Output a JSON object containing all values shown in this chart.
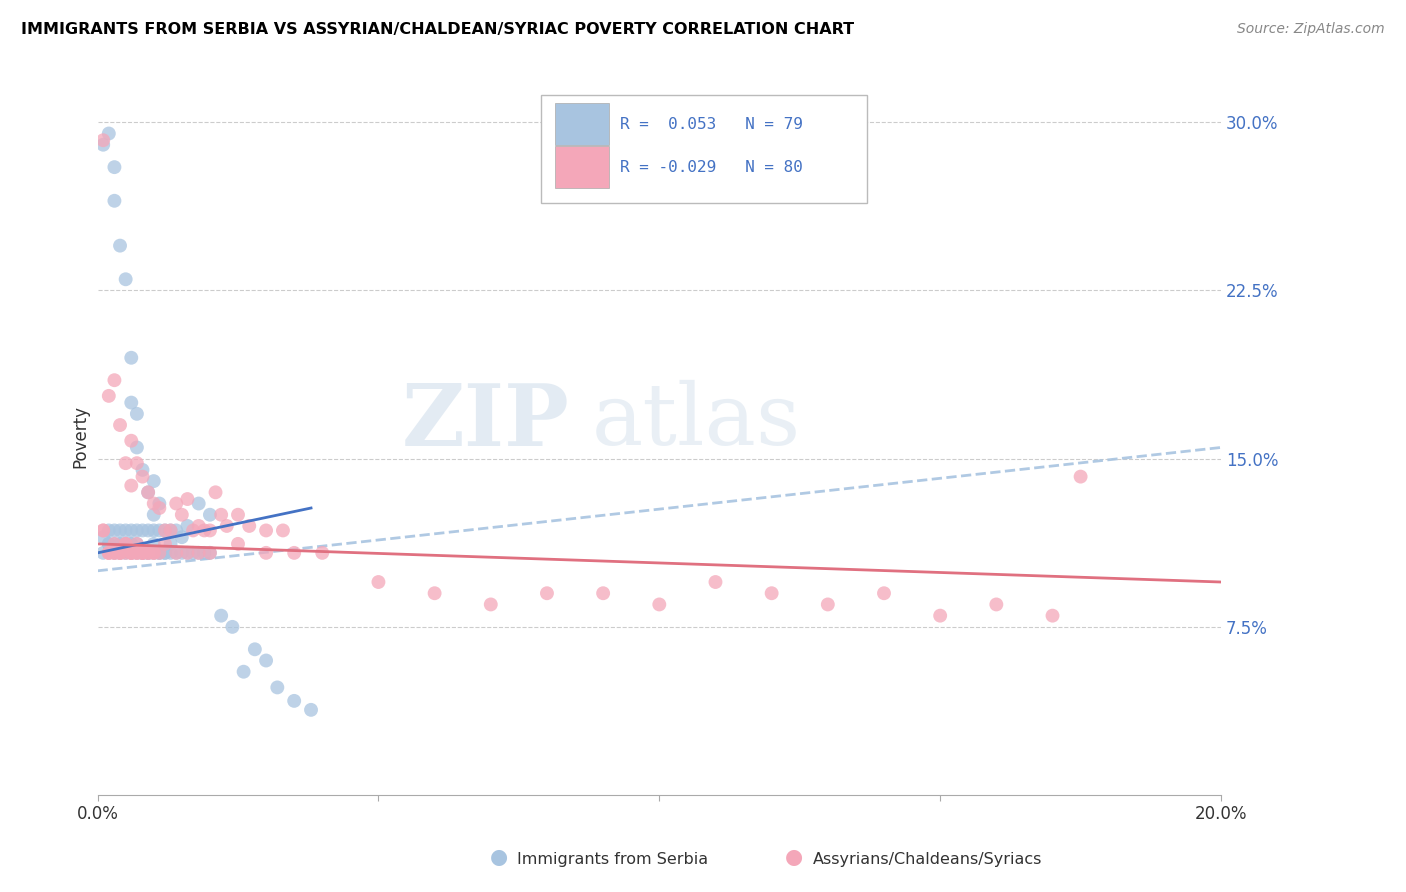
{
  "title": "IMMIGRANTS FROM SERBIA VS ASSYRIAN/CHALDEAN/SYRIAC POVERTY CORRELATION CHART",
  "source": "Source: ZipAtlas.com",
  "ylabel": "Poverty",
  "xlim": [
    0.0,
    0.2
  ],
  "ylim": [
    0.0,
    0.32
  ],
  "r_blue": 0.053,
  "n_blue": 79,
  "r_pink": -0.029,
  "n_pink": 80,
  "legend_label_blue": "Immigrants from Serbia",
  "legend_label_pink": "Assyrians/Chaldeans/Syriacs",
  "color_blue": "#a8c4e0",
  "color_pink": "#f4a7b9",
  "color_blue_line": "#4472c4",
  "color_pink_line": "#e07080",
  "color_blue_text": "#4472c4",
  "watermark": "ZIPatlas",
  "blue_scatter_x": [
    0.001,
    0.001,
    0.002,
    0.002,
    0.002,
    0.003,
    0.003,
    0.003,
    0.003,
    0.004,
    0.004,
    0.004,
    0.004,
    0.005,
    0.005,
    0.005,
    0.005,
    0.006,
    0.006,
    0.006,
    0.006,
    0.006,
    0.007,
    0.007,
    0.007,
    0.007,
    0.008,
    0.008,
    0.008,
    0.009,
    0.009,
    0.009,
    0.01,
    0.01,
    0.01,
    0.01,
    0.011,
    0.011,
    0.011,
    0.012,
    0.012,
    0.013,
    0.013,
    0.014,
    0.015,
    0.016,
    0.018,
    0.02,
    0.001,
    0.002,
    0.003,
    0.004,
    0.005,
    0.006,
    0.007,
    0.008,
    0.009,
    0.01,
    0.011,
    0.012,
    0.013,
    0.014,
    0.015,
    0.016,
    0.017,
    0.018,
    0.019,
    0.02,
    0.022,
    0.024,
    0.026,
    0.028,
    0.03,
    0.032,
    0.035,
    0.038
  ],
  "blue_scatter_y": [
    0.29,
    0.115,
    0.295,
    0.118,
    0.112,
    0.28,
    0.265,
    0.118,
    0.112,
    0.245,
    0.118,
    0.112,
    0.108,
    0.23,
    0.118,
    0.112,
    0.108,
    0.195,
    0.175,
    0.118,
    0.112,
    0.108,
    0.17,
    0.155,
    0.118,
    0.108,
    0.145,
    0.118,
    0.108,
    0.135,
    0.118,
    0.108,
    0.14,
    0.125,
    0.118,
    0.108,
    0.13,
    0.118,
    0.108,
    0.118,
    0.108,
    0.118,
    0.108,
    0.118,
    0.115,
    0.12,
    0.13,
    0.125,
    0.108,
    0.112,
    0.108,
    0.112,
    0.112,
    0.112,
    0.112,
    0.108,
    0.108,
    0.112,
    0.108,
    0.108,
    0.112,
    0.108,
    0.108,
    0.108,
    0.108,
    0.108,
    0.108,
    0.108,
    0.08,
    0.075,
    0.055,
    0.065,
    0.06,
    0.048,
    0.042,
    0.038
  ],
  "pink_scatter_x": [
    0.001,
    0.001,
    0.002,
    0.002,
    0.003,
    0.003,
    0.004,
    0.004,
    0.005,
    0.005,
    0.006,
    0.006,
    0.006,
    0.007,
    0.007,
    0.008,
    0.008,
    0.009,
    0.009,
    0.01,
    0.01,
    0.011,
    0.011,
    0.012,
    0.013,
    0.014,
    0.015,
    0.016,
    0.017,
    0.018,
    0.019,
    0.02,
    0.021,
    0.022,
    0.023,
    0.025,
    0.027,
    0.03,
    0.033,
    0.002,
    0.003,
    0.004,
    0.005,
    0.006,
    0.007,
    0.008,
    0.009,
    0.01,
    0.012,
    0.014,
    0.016,
    0.018,
    0.02,
    0.025,
    0.03,
    0.035,
    0.04,
    0.05,
    0.06,
    0.07,
    0.08,
    0.09,
    0.1,
    0.11,
    0.12,
    0.13,
    0.14,
    0.15,
    0.16,
    0.17,
    0.175,
    0.001,
    0.002,
    0.003,
    0.004,
    0.005,
    0.006,
    0.007,
    0.008
  ],
  "pink_scatter_y": [
    0.292,
    0.118,
    0.178,
    0.108,
    0.185,
    0.108,
    0.165,
    0.108,
    0.148,
    0.108,
    0.158,
    0.138,
    0.108,
    0.148,
    0.108,
    0.142,
    0.108,
    0.135,
    0.108,
    0.13,
    0.108,
    0.128,
    0.108,
    0.118,
    0.118,
    0.13,
    0.125,
    0.132,
    0.118,
    0.12,
    0.118,
    0.118,
    0.135,
    0.125,
    0.12,
    0.125,
    0.12,
    0.118,
    0.118,
    0.108,
    0.108,
    0.108,
    0.112,
    0.108,
    0.112,
    0.108,
    0.108,
    0.108,
    0.112,
    0.108,
    0.108,
    0.108,
    0.108,
    0.112,
    0.108,
    0.108,
    0.108,
    0.095,
    0.09,
    0.085,
    0.09,
    0.09,
    0.085,
    0.095,
    0.09,
    0.085,
    0.09,
    0.08,
    0.085,
    0.08,
    0.142,
    0.118,
    0.108,
    0.112,
    0.108,
    0.112,
    0.108,
    0.108,
    0.108
  ],
  "blue_trend_x": [
    0.0,
    0.038
  ],
  "blue_trend_y": [
    0.108,
    0.128
  ],
  "pink_trend_x": [
    0.0,
    0.2
  ],
  "pink_trend_y": [
    0.112,
    0.095
  ],
  "dashed_trend_x": [
    0.0,
    0.2
  ],
  "dashed_trend_y": [
    0.1,
    0.155
  ]
}
